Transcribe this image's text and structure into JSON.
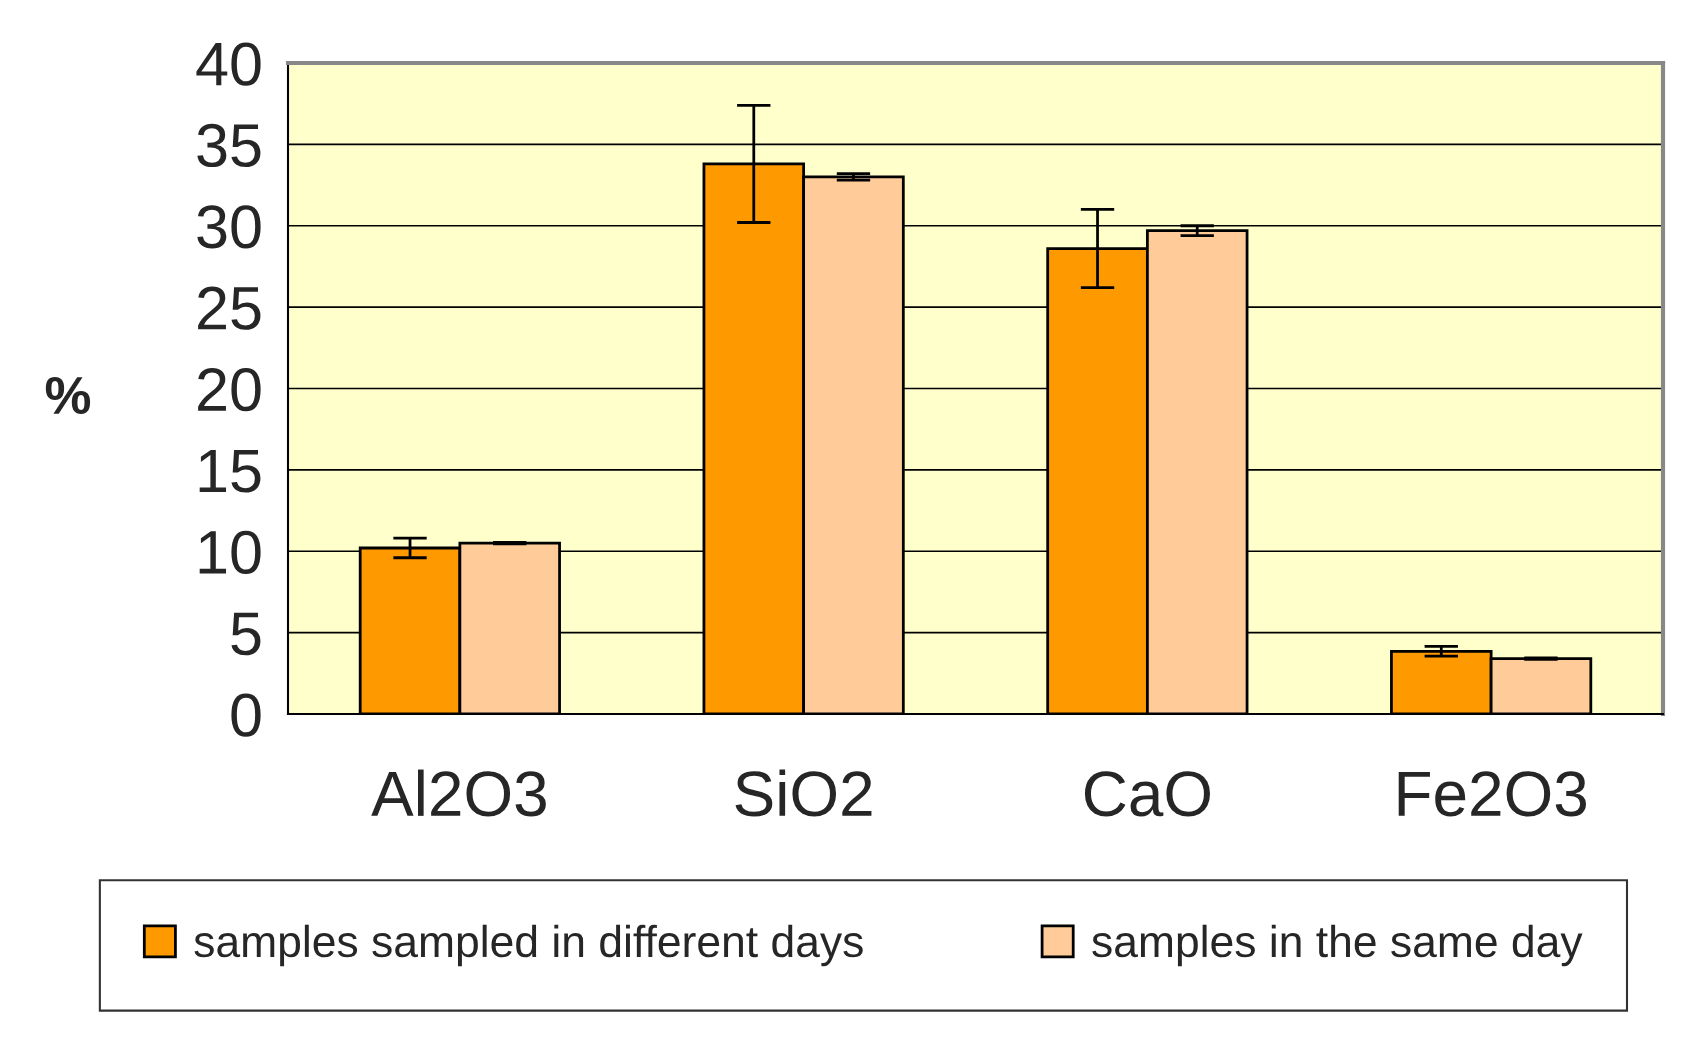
{
  "chart_data": {
    "type": "bar",
    "ylabel": "%",
    "categories": [
      "Al2O3",
      "SiO2",
      "CaO",
      "Fe2O3"
    ],
    "series": [
      {
        "name": "samples sampled in different days",
        "color": "#ff9900",
        "values": [
          10.2,
          33.8,
          28.6,
          3.85
        ],
        "errors": [
          0.6,
          3.6,
          2.4,
          0.3
        ]
      },
      {
        "name": "samples in the same day",
        "color": "#ffcc99",
        "values": [
          10.5,
          33.0,
          29.7,
          3.4
        ],
        "errors": [
          0.05,
          0.2,
          0.3,
          0.05
        ]
      }
    ],
    "ylim": [
      0,
      40
    ],
    "yticks": [
      0,
      5,
      10,
      15,
      20,
      25,
      30,
      35,
      40
    ],
    "grid": "y",
    "legend": "bottom"
  }
}
